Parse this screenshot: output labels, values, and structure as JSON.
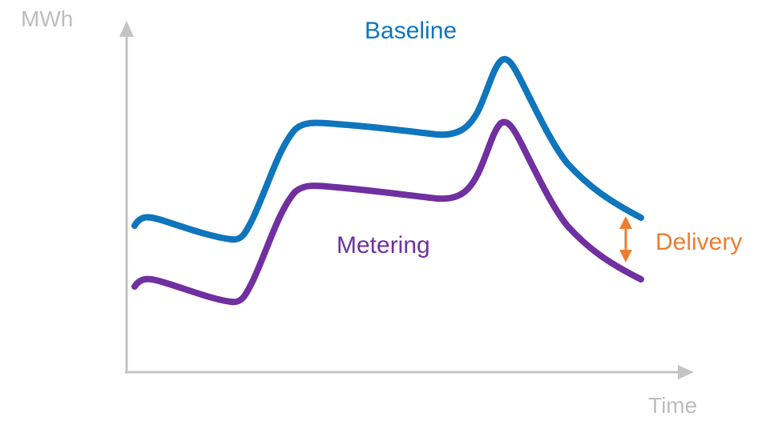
{
  "axes": {
    "y_label": "MWh",
    "x_label": "Time",
    "color": "#c4c4c4"
  },
  "series": {
    "baseline": {
      "label": "Baseline",
      "color": "#0f75bc"
    },
    "metering": {
      "label": "Metering",
      "color": "#7030a0"
    }
  },
  "delivery": {
    "label": "Delivery",
    "color": "#ed7d31"
  }
}
